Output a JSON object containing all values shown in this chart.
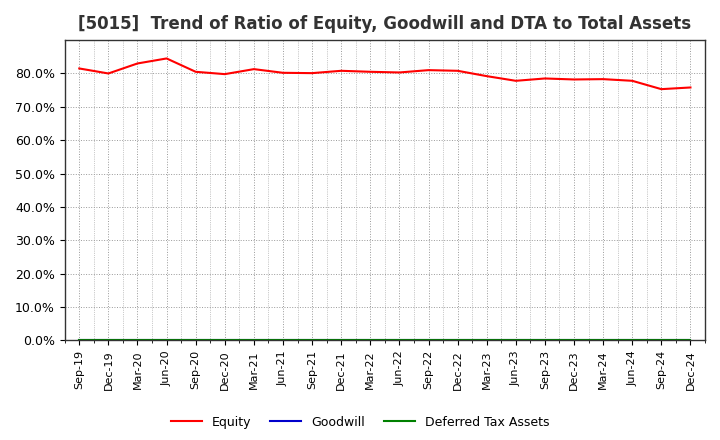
{
  "title": "[5015]  Trend of Ratio of Equity, Goodwill and DTA to Total Assets",
  "x_labels": [
    "Sep-19",
    "Dec-19",
    "Mar-20",
    "Jun-20",
    "Sep-20",
    "Dec-20",
    "Mar-21",
    "Jun-21",
    "Sep-21",
    "Dec-21",
    "Mar-22",
    "Jun-22",
    "Sep-22",
    "Dec-22",
    "Mar-23",
    "Jun-23",
    "Sep-23",
    "Dec-23",
    "Mar-24",
    "Jun-24",
    "Sep-24",
    "Dec-24"
  ],
  "equity": [
    81.5,
    80.0,
    83.0,
    84.5,
    80.5,
    79.8,
    81.3,
    80.2,
    80.1,
    80.8,
    80.5,
    80.3,
    81.0,
    80.8,
    79.2,
    77.8,
    78.5,
    78.2,
    78.3,
    77.8,
    75.3,
    75.8
  ],
  "goodwill": [
    0.0,
    0.0,
    0.0,
    0.0,
    0.0,
    0.0,
    0.0,
    0.0,
    0.0,
    0.0,
    0.0,
    0.0,
    0.0,
    0.0,
    0.0,
    0.0,
    0.0,
    0.0,
    0.0,
    0.0,
    0.0,
    0.0
  ],
  "dta": [
    0.0,
    0.0,
    0.0,
    0.0,
    0.0,
    0.0,
    0.0,
    0.0,
    0.0,
    0.0,
    0.0,
    0.0,
    0.0,
    0.0,
    0.0,
    0.0,
    0.0,
    0.0,
    0.0,
    0.0,
    0.0,
    0.0
  ],
  "equity_color": "#ff0000",
  "goodwill_color": "#0000cc",
  "dta_color": "#008000",
  "ylim": [
    0,
    90
  ],
  "yticks": [
    0,
    10,
    20,
    30,
    40,
    50,
    60,
    70,
    80
  ],
  "background_color": "#ffffff",
  "plot_bg_color": "#ffffff",
  "grid_color": "#999999",
  "title_fontsize": 12,
  "legend_labels": [
    "Equity",
    "Goodwill",
    "Deferred Tax Assets"
  ]
}
